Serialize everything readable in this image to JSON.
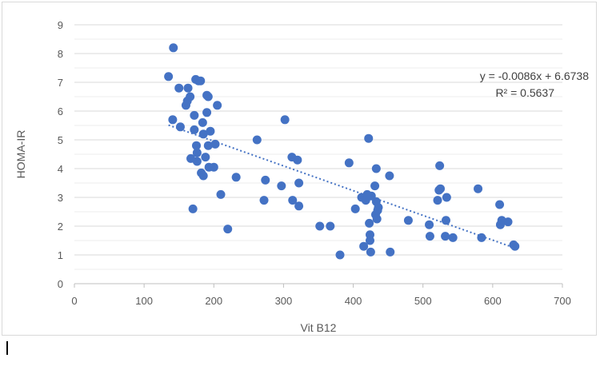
{
  "chart_data": {
    "type": "scatter",
    "xlabel": "Vit B12",
    "ylabel": "HOMA-IR",
    "xlim": [
      0,
      700
    ],
    "ylim": [
      0,
      9
    ],
    "x_ticks": [
      "0",
      "100",
      "200",
      "300",
      "400",
      "500",
      "600",
      "700"
    ],
    "y_ticks": [
      "0",
      "1",
      "2",
      "3",
      "4",
      "5",
      "6",
      "7",
      "8",
      "9"
    ],
    "grid": true,
    "legend": "none",
    "marker_color": "#4472c4",
    "trendline": {
      "type": "linear",
      "slope": -0.0086,
      "intercept": 6.6738,
      "x_range": [
        135,
        632
      ],
      "style": "dotted",
      "color": "#4472c4",
      "equation": "y = -0.0086x + 6.6738",
      "r_squared": "R² = 0.5637"
    },
    "points": [
      [
        135,
        7.2
      ],
      [
        142,
        8.2
      ],
      [
        141,
        5.7
      ],
      [
        150,
        6.8
      ],
      [
        152,
        5.45
      ],
      [
        160,
        6.2
      ],
      [
        162,
        6.35
      ],
      [
        163,
        6.8
      ],
      [
        166,
        6.5
      ],
      [
        167,
        4.35
      ],
      [
        170,
        2.6
      ],
      [
        172,
        5.85
      ],
      [
        172,
        5.35
      ],
      [
        174,
        7.1
      ],
      [
        175,
        4.8
      ],
      [
        176,
        4.55
      ],
      [
        176,
        4.25
      ],
      [
        178,
        7.05
      ],
      [
        181,
        7.05
      ],
      [
        182,
        3.85
      ],
      [
        184,
        5.6
      ],
      [
        185,
        5.2
      ],
      [
        185,
        3.75
      ],
      [
        188,
        4.4
      ],
      [
        190,
        6.55
      ],
      [
        190,
        5.95
      ],
      [
        192,
        6.5
      ],
      [
        192,
        4.8
      ],
      [
        193,
        4.05
      ],
      [
        195,
        5.3
      ],
      [
        200,
        4.05
      ],
      [
        202,
        4.85
      ],
      [
        205,
        6.2
      ],
      [
        210,
        3.1
      ],
      [
        220,
        1.9
      ],
      [
        232,
        3.7
      ],
      [
        262,
        5.0
      ],
      [
        272,
        2.9
      ],
      [
        274,
        3.6
      ],
      [
        297,
        3.4
      ],
      [
        302,
        5.7
      ],
      [
        312,
        4.4
      ],
      [
        313,
        2.9
      ],
      [
        320,
        4.3
      ],
      [
        322,
        3.5
      ],
      [
        322,
        2.7
      ],
      [
        352,
        2.0
      ],
      [
        367,
        2.0
      ],
      [
        381,
        1.0
      ],
      [
        394,
        4.2
      ],
      [
        403,
        2.6
      ],
      [
        412,
        3.0
      ],
      [
        415,
        1.3
      ],
      [
        418,
        2.9
      ],
      [
        420,
        3.1
      ],
      [
        422,
        5.05
      ],
      [
        423,
        2.1
      ],
      [
        424,
        1.5
      ],
      [
        424,
        1.7
      ],
      [
        425,
        1.1
      ],
      [
        426,
        3.05
      ],
      [
        431,
        3.4
      ],
      [
        432,
        2.4
      ],
      [
        433,
        4.0
      ],
      [
        433,
        2.85
      ],
      [
        434,
        2.25
      ],
      [
        435,
        2.55
      ],
      [
        436,
        2.65
      ],
      [
        452,
        3.75
      ],
      [
        453,
        1.1
      ],
      [
        479,
        2.2
      ],
      [
        509,
        2.05
      ],
      [
        510,
        1.65
      ],
      [
        521,
        2.9
      ],
      [
        523,
        3.25
      ],
      [
        524,
        4.1
      ],
      [
        525,
        3.3
      ],
      [
        532,
        1.65
      ],
      [
        533,
        2.2
      ],
      [
        534,
        3.0
      ],
      [
        543,
        1.6
      ],
      [
        579,
        3.3
      ],
      [
        584,
        1.6
      ],
      [
        610,
        2.75
      ],
      [
        611,
        2.05
      ],
      [
        613,
        2.2
      ],
      [
        622,
        2.15
      ],
      [
        630,
        1.35
      ],
      [
        632,
        1.3
      ]
    ]
  }
}
